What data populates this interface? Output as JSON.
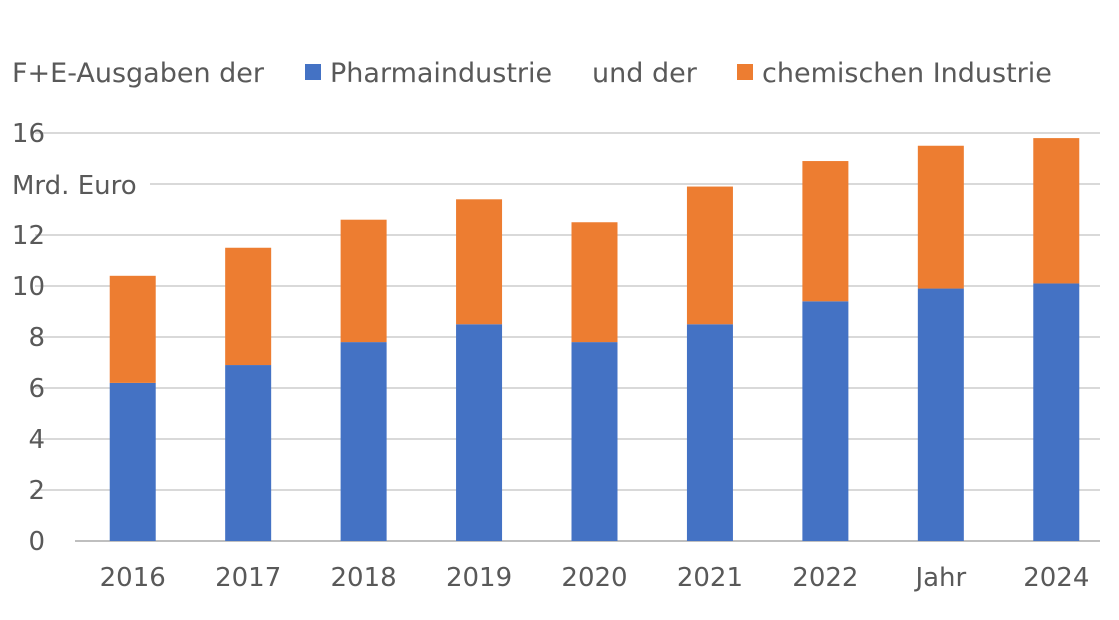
{
  "chart_data": {
    "type": "bar",
    "stacked": true,
    "title_prefix": "F+E-Ausgaben der",
    "legend_joiner": "und der",
    "ylabel": "Mrd. Euro",
    "xlabel": "",
    "categories": [
      "2016",
      "2017",
      "2018",
      "2019",
      "2020",
      "2021",
      "2022",
      "Jahr",
      "2024"
    ],
    "series": [
      {
        "name": "Pharmaindustrie",
        "color": "#4472c4",
        "values": [
          6.2,
          6.9,
          7.8,
          8.5,
          7.8,
          8.5,
          9.4,
          9.9,
          10.1
        ]
      },
      {
        "name": "chemischen Industrie",
        "color": "#ed7d31",
        "values": [
          4.2,
          4.6,
          4.8,
          4.9,
          4.7,
          5.4,
          5.5,
          5.6,
          5.7
        ]
      }
    ],
    "ylim": [
      0,
      16
    ],
    "yticks": [
      0,
      2,
      4,
      6,
      8,
      10,
      12,
      14,
      16
    ],
    "ytick_labels": [
      "0",
      "2",
      "4",
      "6",
      "8",
      "10",
      "12",
      "",
      "16"
    ],
    "grid": true,
    "legend_placement": "top"
  }
}
